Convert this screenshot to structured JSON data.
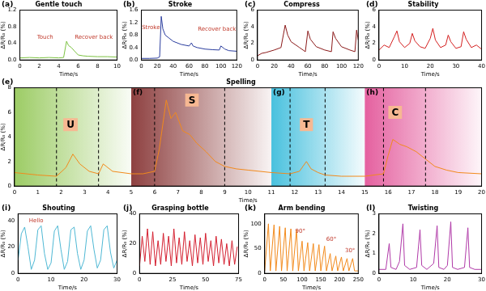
{
  "chart_data": [
    {
      "type": "line",
      "panel": "(a)",
      "title": "Gentle touch",
      "x_label": "Time/s",
      "y_label": "ΔR/R₀ (%)",
      "color": "#7cc242",
      "grid": false,
      "x": [
        0,
        1,
        2,
        3,
        4,
        4.5,
        4.8,
        5.0,
        5.3,
        5.6,
        6.0,
        6.5,
        7,
        8,
        9,
        10
      ],
      "values": [
        0.05,
        0.06,
        0.05,
        0.06,
        0.05,
        0.06,
        0.45,
        0.35,
        0.3,
        0.22,
        0.12,
        0.1,
        0.09,
        0.08,
        0.08,
        0.07
      ],
      "xlim": [
        0,
        10
      ],
      "xticks": [
        0,
        2,
        4,
        6,
        8,
        10
      ],
      "ylim": [
        0,
        1.2
      ],
      "yticks": [
        {
          "value": 0,
          "label": "0.0"
        },
        {
          "value": 0.4,
          "label": "0.4"
        },
        {
          "value": 0.8,
          "label": "0.8"
        },
        {
          "value": 1.2,
          "label": "1.2"
        }
      ],
      "annotations": [
        {
          "text": "Touch",
          "x": 2.6,
          "y": 0.55
        },
        {
          "text": "Recover back",
          "x": 7.6,
          "y": 0.55
        }
      ]
    },
    {
      "type": "line",
      "panel": "(b)",
      "title": "Stroke",
      "x_label": "Time/s",
      "y_label": "ΔR/R₀ (%)",
      "color": "#2a3d9e",
      "grid": false,
      "x": [
        0,
        10,
        20,
        23,
        25,
        27,
        30,
        35,
        40,
        50,
        60,
        63,
        65,
        70,
        80,
        90,
        98,
        100,
        105,
        110,
        120
      ],
      "values": [
        0.05,
        0.05,
        0.06,
        0.1,
        1.4,
        1.0,
        0.8,
        0.7,
        0.6,
        0.5,
        0.45,
        0.55,
        0.45,
        0.4,
        0.35,
        0.33,
        0.32,
        0.45,
        0.35,
        0.3,
        0.28
      ],
      "xlim": [
        0,
        120
      ],
      "xticks": [
        0,
        20,
        40,
        60,
        80,
        100,
        120
      ],
      "ylim": [
        0,
        1.6
      ],
      "yticks": [
        {
          "value": 0,
          "label": "0.0"
        },
        {
          "value": 0.4,
          "label": "0.4"
        },
        {
          "value": 0.8,
          "label": "0.8"
        },
        {
          "value": 1.2,
          "label": "1.2"
        },
        {
          "value": 1.6,
          "label": "1.6"
        }
      ],
      "annotations": [
        {
          "text": "Stroke",
          "x": 12,
          "y": 1.05
        },
        {
          "text": "Recover back",
          "x": 95,
          "y": 1.0
        }
      ]
    },
    {
      "type": "line",
      "panel": "(c)",
      "title": "Compress",
      "x_label": "Time/s",
      "y_label": "ΔR/R₀ (%)",
      "color": "#8b1a1a",
      "grid": false,
      "x": [
        0,
        5,
        10,
        20,
        28,
        33,
        36,
        40,
        50,
        57,
        60,
        63,
        70,
        80,
        88,
        90,
        93,
        100,
        110,
        116,
        118,
        120
      ],
      "values": [
        0.5,
        0.8,
        0.9,
        1.2,
        1.5,
        4.2,
        3.0,
        2.2,
        1.5,
        1.0,
        3.5,
        2.5,
        1.6,
        1.2,
        1.0,
        3.4,
        2.6,
        1.6,
        1.2,
        1.0,
        3.6,
        2.4
      ],
      "xlim": [
        0,
        120
      ],
      "xticks": [
        0,
        20,
        40,
        60,
        80,
        100,
        120
      ],
      "ylim": [
        0,
        6
      ],
      "yticks": [
        0,
        2,
        4,
        6
      ]
    },
    {
      "type": "line",
      "panel": "(d)",
      "title": "Stability",
      "x_label": "Time/s",
      "y_label": "ΔR/R₀ (%)",
      "color": "#d42020",
      "grid": false,
      "x": [
        0,
        2,
        4,
        6,
        7,
        8,
        10,
        12,
        13,
        14,
        16,
        18,
        20,
        21,
        22,
        24,
        26,
        27,
        28,
        30,
        32,
        33,
        34,
        36,
        38,
        40
      ],
      "values": [
        1.2,
        1.8,
        1.5,
        2.8,
        3.5,
        2.2,
        1.5,
        2.0,
        3.2,
        2.3,
        1.6,
        1.4,
        2.6,
        3.8,
        2.4,
        1.5,
        1.8,
        3.0,
        2.2,
        1.4,
        1.6,
        3.4,
        2.5,
        1.5,
        1.8,
        1.3
      ],
      "xlim": [
        0,
        40
      ],
      "xticks": [
        0,
        10,
        20,
        30,
        40
      ],
      "ylim": [
        0,
        6
      ],
      "yticks": [
        0,
        2,
        4,
        6
      ]
    },
    {
      "type": "line",
      "panel": "(e)",
      "title": "Spelling",
      "x_label": "Time/s",
      "y_label": "ΔR/R₀ (%)",
      "color": "#f28a1c",
      "grid": false,
      "x": [
        0,
        1,
        1.8,
        2.2,
        2.5,
        2.8,
        3.2,
        3.6,
        3.8,
        4.2,
        5,
        5.5,
        6.0,
        6.2,
        6.5,
        6.7,
        6.9,
        7.2,
        7.5,
        7.8,
        8.2,
        8.6,
        9.0,
        9.5,
        10,
        11,
        11.8,
        12.2,
        12.5,
        12.7,
        13.0,
        13.3,
        14,
        15,
        15.8,
        16.0,
        16.2,
        16.5,
        16.8,
        17.2,
        17.6,
        18.0,
        18.5,
        19,
        20
      ],
      "values": [
        1.1,
        0.9,
        0.8,
        1.5,
        2.6,
        1.8,
        1.2,
        1.0,
        1.8,
        1.2,
        1.0,
        1.0,
        1.2,
        3.0,
        7.0,
        5.5,
        6.0,
        4.5,
        4.2,
        3.5,
        2.8,
        2.0,
        1.6,
        1.4,
        1.3,
        1.1,
        1.0,
        1.2,
        2.0,
        1.4,
        1.1,
        0.9,
        0.8,
        0.8,
        1.0,
        2.5,
        3.8,
        3.4,
        3.2,
        2.8,
        2.2,
        1.6,
        1.3,
        1.1,
        1.0
      ],
      "xlim": [
        0,
        20
      ],
      "xticks": [
        0,
        1,
        2,
        3,
        4,
        5,
        6,
        7,
        8,
        9,
        10,
        11,
        12,
        13,
        14,
        15,
        16,
        17,
        18,
        19,
        20
      ],
      "ylim": [
        0,
        8
      ],
      "yticks": [
        0,
        2,
        4,
        6,
        8
      ],
      "bands": [
        {
          "label": "",
          "xlim": [
            0,
            5
          ],
          "color": "#8bc34a"
        },
        {
          "label": "(f)",
          "xlim": [
            5,
            11
          ],
          "color": "#7a1f1f"
        },
        {
          "label": "(g)",
          "xlim": [
            11,
            15
          ],
          "color": "#29b6d8"
        },
        {
          "label": "(h)",
          "xlim": [
            15,
            20
          ],
          "color": "#e0458f"
        }
      ],
      "vlines": [
        1.8,
        3.6,
        6.0,
        9.0,
        11.8,
        13.3,
        15.8,
        17.6
      ],
      "letters": [
        {
          "text": "U",
          "x": 2.4,
          "y": 5.0
        },
        {
          "text": "S",
          "x": 7.6,
          "y": 7.0
        },
        {
          "text": "T",
          "x": 12.5,
          "y": 5.0
        },
        {
          "text": "C",
          "x": 16.3,
          "y": 6.0
        }
      ]
    },
    {
      "type": "line",
      "panel": "(i)",
      "title": "Shouting",
      "x_label": "Time/s",
      "y_label": "ΔR/R₀ (%)",
      "color": "#4fb8d4",
      "grid": false,
      "x": [
        0,
        1,
        2,
        3,
        4,
        5,
        6,
        7,
        8,
        9,
        10,
        11,
        12,
        13,
        14,
        15,
        16,
        17,
        18,
        19,
        20,
        21,
        22,
        23,
        24,
        25,
        26,
        27,
        28,
        29,
        30
      ],
      "values": [
        10,
        30,
        35,
        20,
        3,
        10,
        33,
        36,
        15,
        3,
        8,
        32,
        36,
        18,
        3,
        9,
        33,
        35,
        15,
        3,
        10,
        32,
        36,
        18,
        4,
        10,
        33,
        36,
        16,
        4,
        10
      ],
      "xlim": [
        0,
        30
      ],
      "xticks": [
        0,
        10,
        20,
        30
      ],
      "ylim": [
        0,
        45
      ],
      "yticks": [
        0,
        20,
        40
      ],
      "annotations": [
        {
          "text": "Hello",
          "x": 5.5,
          "y": 40
        }
      ]
    },
    {
      "type": "line",
      "panel": "(j)",
      "title": "Grasping bottle",
      "x_label": "Time/s",
      "y_label": "ΔR/R₀ (%)",
      "color": "#d42030",
      "grid": false,
      "x": [
        0,
        2,
        4,
        6,
        8,
        10,
        12,
        14,
        16,
        18,
        20,
        22,
        24,
        26,
        28,
        30,
        32,
        34,
        36,
        38,
        40,
        42,
        44,
        46,
        48,
        50,
        52,
        54,
        56,
        58,
        60,
        62,
        64,
        66,
        68,
        70,
        72,
        74
      ],
      "values": [
        5,
        25,
        8,
        30,
        6,
        28,
        5,
        22,
        6,
        27,
        8,
        25,
        5,
        30,
        7,
        24,
        6,
        28,
        8,
        22,
        5,
        26,
        7,
        24,
        6,
        27,
        8,
        22,
        5,
        25,
        7,
        23,
        6,
        20,
        5,
        22,
        6,
        18
      ],
      "xlim": [
        0,
        75
      ],
      "xticks": [
        0,
        25,
        50,
        75
      ],
      "ylim": [
        0,
        40
      ],
      "yticks": [
        0,
        20,
        40
      ]
    },
    {
      "type": "line",
      "panel": "(k)",
      "title": "Arm bending",
      "x_label": "Time/s",
      "y_label": "ΔR/R₀ (%)",
      "color": "#f28a1c",
      "grid": false,
      "x": [
        0,
        10,
        15,
        25,
        30,
        40,
        45,
        55,
        60,
        70,
        75,
        85,
        90,
        100,
        105,
        115,
        120,
        130,
        135,
        145,
        150,
        160,
        165,
        175,
        180,
        190,
        195,
        205,
        210,
        220,
        225,
        235,
        240,
        250
      ],
      "values": [
        5,
        100,
        5,
        98,
        5,
        95,
        5,
        92,
        5,
        90,
        5,
        88,
        5,
        65,
        5,
        62,
        5,
        60,
        5,
        58,
        5,
        55,
        5,
        40,
        5,
        35,
        5,
        33,
        5,
        30,
        5,
        30,
        5,
        5
      ],
      "xlim": [
        0,
        250
      ],
      "xticks": [
        0,
        50,
        100,
        150,
        200,
        250
      ],
      "ylim": [
        0,
        120
      ],
      "yticks": [
        0,
        50,
        100
      ],
      "annotations": [
        {
          "text": "90°",
          "x": 95,
          "y": 85
        },
        {
          "text": "60°",
          "x": 178,
          "y": 68
        },
        {
          "text": "30°",
          "x": 228,
          "y": 45
        }
      ]
    },
    {
      "type": "line",
      "panel": "(l)",
      "title": "Twisting",
      "x_label": "Time/s",
      "y_label": "ΔR/R₀ (%)",
      "color": "#b03aa8",
      "grid": false,
      "x": [
        0,
        2,
        3,
        3.5,
        5,
        6,
        7,
        7.5,
        9,
        11,
        12,
        12.5,
        14,
        16,
        17,
        17.5,
        19,
        20,
        21,
        21.5,
        23,
        25,
        26,
        26.5,
        28,
        30
      ],
      "values": [
        0.2,
        0.2,
        1.5,
        0.3,
        0.2,
        0.6,
        2.5,
        0.4,
        0.2,
        0.3,
        2.2,
        0.4,
        0.2,
        0.5,
        2.4,
        0.3,
        0.2,
        0.4,
        2.6,
        0.3,
        0.2,
        0.3,
        2.3,
        0.3,
        0.2,
        0.2
      ],
      "xlim": [
        0,
        30
      ],
      "xticks": [
        0,
        10,
        20,
        30
      ],
      "ylim": [
        0,
        3
      ],
      "yticks": [
        0,
        1,
        2,
        3
      ]
    }
  ]
}
